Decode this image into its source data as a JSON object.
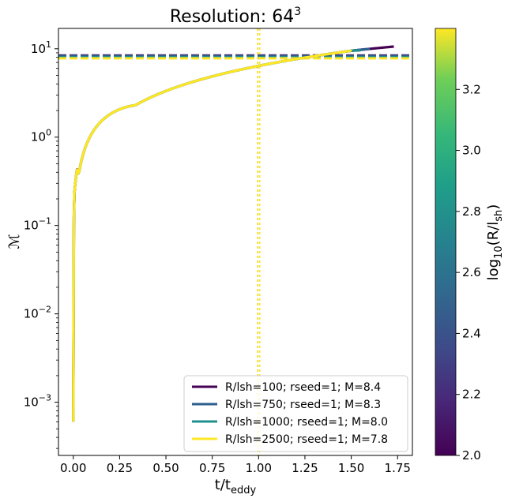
{
  "chart_data": {
    "type": "line",
    "title": "Resolution: 64",
    "title_sup": "3",
    "xlabel": "t/t",
    "xlabel_sub": "eddy",
    "ylabel": "ℳ",
    "xlim": [
      -0.08,
      1.83
    ],
    "ylim": [
      0.00025,
      17
    ],
    "yscale": "log",
    "grid": false,
    "legend_position": "lower right",
    "xticks": [
      0.0,
      0.25,
      0.5,
      0.75,
      1.0,
      1.25,
      1.5,
      1.75
    ],
    "xtick_labels": [
      "0.00",
      "0.25",
      "0.50",
      "0.75",
      "1.00",
      "1.25",
      "1.50",
      "1.75"
    ],
    "yticks": [
      0.001,
      0.01,
      0.1,
      1,
      10
    ],
    "ytick_base": "10",
    "ytick_exponents": [
      "−3",
      "−2",
      "−1",
      "0",
      "1"
    ],
    "vline_x": 1.0,
    "colorbar": {
      "label": "log",
      "label_sub": "10",
      "label_tail": "(R/l",
      "label_tail_sub": "sh",
      "label_end": ")",
      "range": [
        2.0,
        3.4
      ],
      "ticks": [
        2.0,
        2.2,
        2.4,
        2.6,
        2.8,
        3.0,
        3.2
      ],
      "tick_labels": [
        "2.0",
        "2.2",
        "2.4",
        "2.6",
        "2.8",
        "3.0",
        "3.2"
      ]
    },
    "series": [
      {
        "name": "R/lsh=100; rseed=1; M=8.4",
        "color": "#440154",
        "hline": 8.4,
        "t_end": 1.73,
        "final": 10.6
      },
      {
        "name": "R/lsh=750; rseed=1; M=8.3",
        "color": "#2c5f8e",
        "hline": 8.3,
        "t_end": 1.6,
        "final": 10.0
      },
      {
        "name": "R/lsh=1000; rseed=1; M=8.0",
        "color": "#21908d",
        "hline": 8.0,
        "t_end": 1.55,
        "final": 9.6
      },
      {
        "name": "R/lsh=2500; rseed=1; M=7.8",
        "color": "#fde725",
        "hline": 7.8,
        "t_end": 1.5,
        "final": 9.3
      }
    ]
  }
}
